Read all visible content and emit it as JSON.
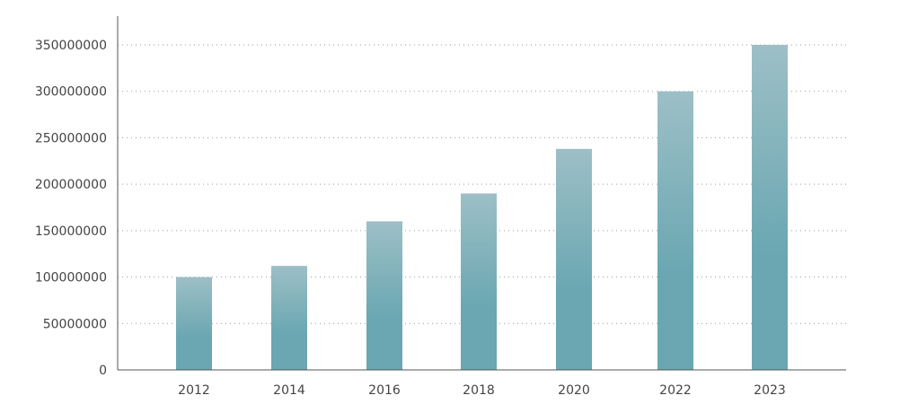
{
  "chart_data": {
    "type": "bar",
    "title": "",
    "xlabel": "",
    "ylabel": "",
    "categories": [
      "2012",
      "2014",
      "2016",
      "2018",
      "2020",
      "2022",
      "2023"
    ],
    "values": [
      100000000,
      112000000,
      160000000,
      190000000,
      238000000,
      300000000,
      350000000
    ],
    "ylim": [
      0,
      350000000
    ],
    "y_ticks": [
      "0",
      "50000000",
      "100000000",
      "150000000",
      "200000000",
      "250000000",
      "300000000",
      "350000000"
    ],
    "grid": "horizontal-dotted",
    "legend": "none",
    "colors": {
      "bar_top": "#9dbfc6",
      "bar_bottom": "#6aa7b2",
      "grid": "#999999",
      "axis": "#555555",
      "text": "#444444"
    }
  }
}
